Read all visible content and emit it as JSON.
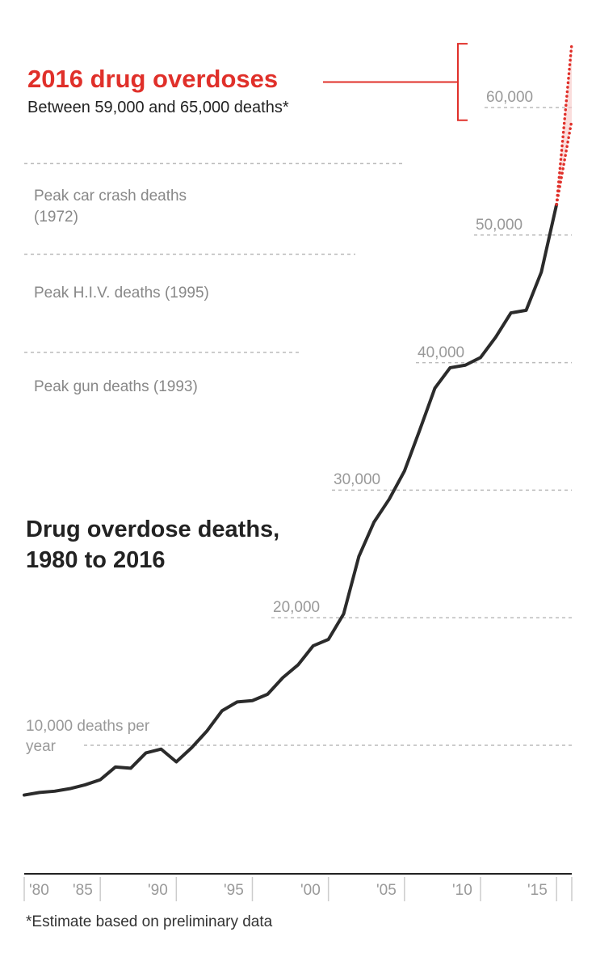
{
  "annotation": {
    "title": "2016 drug overdoses",
    "subtitle": "Between 59,000 and 65,000 deaths*"
  },
  "reference_lines": [
    {
      "label": "Peak car crash deaths (1972)",
      "value": 55600
    },
    {
      "label": "Peak H.I.V. deaths (1995)",
      "value": 48500
    },
    {
      "label": "Peak gun deaths (1993)",
      "value": 40800
    }
  ],
  "footnote": "*Estimate based on preliminary data",
  "colors": {
    "line": "#2b2b2b",
    "estimate": "#e0302a",
    "grid": "#bbbbbb",
    "estimate_band": "#f6c6c4"
  },
  "chart_data": {
    "type": "line",
    "title": "Drug overdose deaths, 1980 to 2016",
    "xlabel": "",
    "ylabel": "",
    "xlim": [
      1980,
      2016
    ],
    "ylim": [
      0,
      65000
    ],
    "grid_label_10000": "10,000 deaths per year",
    "yticks": [
      {
        "value": 10000,
        "label": "10,000 deaths per year"
      },
      {
        "value": 20000,
        "label": "20,000"
      },
      {
        "value": 30000,
        "label": "30,000"
      },
      {
        "value": 40000,
        "label": "40,000"
      },
      {
        "value": 50000,
        "label": "50,000"
      },
      {
        "value": 60000,
        "label": "60,000"
      }
    ],
    "xticks": [
      {
        "value": 1980,
        "label": "'80"
      },
      {
        "value": 1985,
        "label": "'85"
      },
      {
        "value": 1990,
        "label": "'90"
      },
      {
        "value": 1995,
        "label": "'95"
      },
      {
        "value": 2000,
        "label": "'00"
      },
      {
        "value": 2005,
        "label": "'05"
      },
      {
        "value": 2010,
        "label": "'10"
      },
      {
        "value": 2015,
        "label": "'15"
      }
    ],
    "series": [
      {
        "name": "Drug overdose deaths",
        "x": [
          1980,
          1981,
          1982,
          1983,
          1984,
          1985,
          1986,
          1987,
          1988,
          1989,
          1990,
          1991,
          1992,
          1993,
          1994,
          1995,
          1996,
          1997,
          1998,
          1999,
          2000,
          2001,
          2002,
          2003,
          2004,
          2005,
          2006,
          2007,
          2008,
          2009,
          2010,
          2011,
          2012,
          2013,
          2014,
          2015
        ],
        "values": [
          6100,
          6300,
          6400,
          6600,
          6900,
          7300,
          8300,
          8200,
          9400,
          9700,
          8700,
          9800,
          11100,
          12700,
          13400,
          13500,
          14000,
          15300,
          16300,
          17800,
          18300,
          20300,
          24800,
          27500,
          29300,
          31500,
          34700,
          38000,
          39600,
          39800,
          40400,
          42000,
          43900,
          44100,
          47100,
          52400
        ]
      },
      {
        "name": "2016 estimate",
        "estimate": true,
        "x": [
          2015,
          2016
        ],
        "low": [
          52400,
          59000
        ],
        "high": [
          52400,
          65000
        ]
      }
    ]
  }
}
